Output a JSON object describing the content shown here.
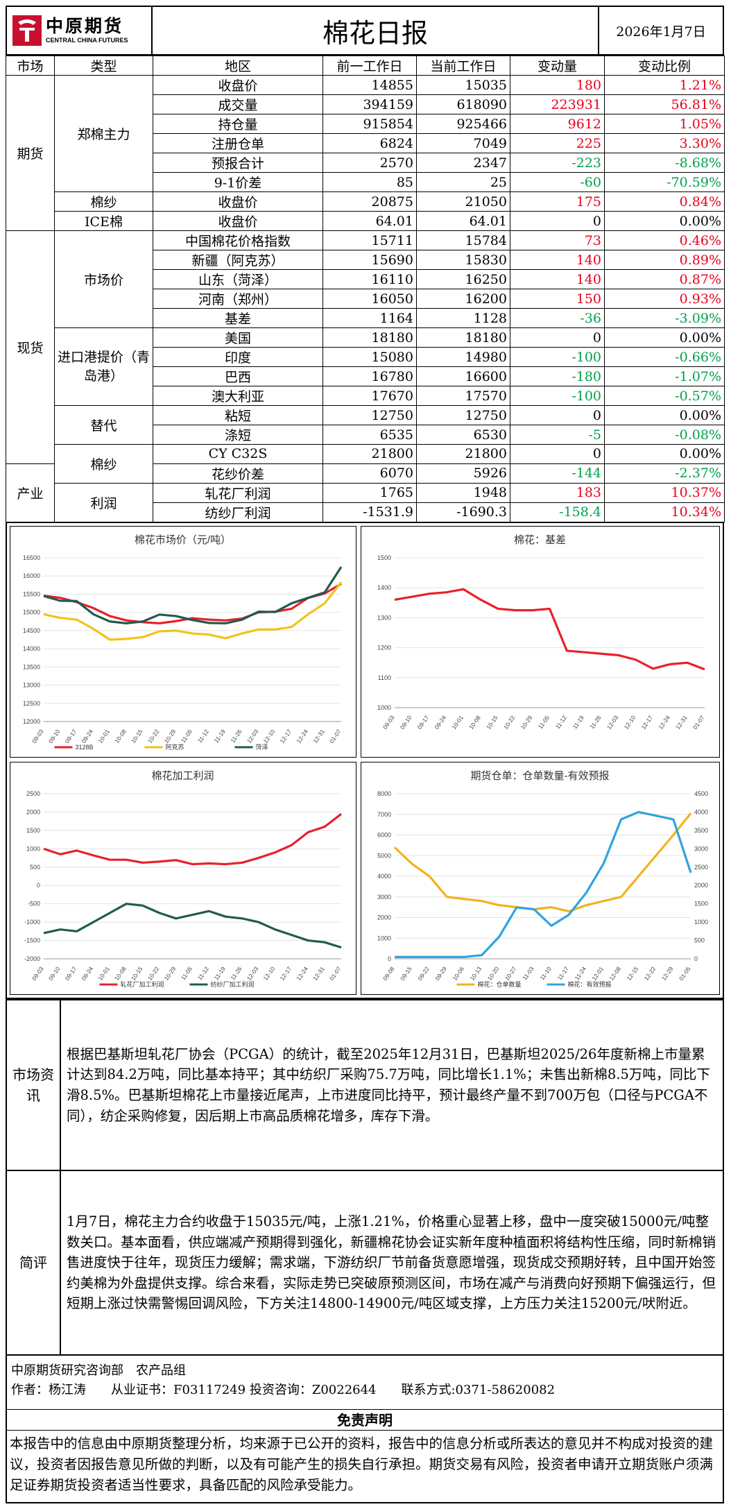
{
  "header": {
    "logo_cn": "中原期货",
    "logo_en": "CENTRAL CHINA FUTURES",
    "title": "棉花日报",
    "date": "2026年1月7日"
  },
  "table_headers": [
    "市场",
    "类型",
    "地区",
    "前一工作日",
    "当前工作日",
    "变动量",
    "变动比例"
  ],
  "rows": [
    {
      "market": "期货",
      "type": "郑棉主力",
      "area": "收盘价",
      "prev": "14855",
      "cur": "15035",
      "chg": "180",
      "pct": "1.21%",
      "dir": "up"
    },
    {
      "area": "成交量",
      "prev": "394159",
      "cur": "618090",
      "chg": "223931",
      "pct": "56.81%",
      "dir": "up"
    },
    {
      "area": "持仓量",
      "prev": "915854",
      "cur": "925466",
      "chg": "9612",
      "pct": "1.05%",
      "dir": "up"
    },
    {
      "area": "注册仓单",
      "prev": "6824",
      "cur": "7049",
      "chg": "225",
      "pct": "3.30%",
      "dir": "up"
    },
    {
      "area": "预报合计",
      "prev": "2570",
      "cur": "2347",
      "chg": "-223",
      "pct": "-8.68%",
      "dir": "down"
    },
    {
      "area": "9-1价差",
      "prev": "85",
      "cur": "25",
      "chg": "-60",
      "pct": "-70.59%",
      "dir": "down"
    },
    {
      "type": "棉纱",
      "area": "收盘价",
      "prev": "20875",
      "cur": "21050",
      "chg": "175",
      "pct": "0.84%",
      "dir": "up"
    },
    {
      "type": "ICE棉",
      "area": "收盘价",
      "prev": "64.01",
      "cur": "64.01",
      "chg": "0",
      "pct": "0.00%",
      "dir": "flat"
    },
    {
      "market": "现货",
      "type": "市场价",
      "area": "中国棉花价格指数",
      "prev": "15711",
      "cur": "15784",
      "chg": "73",
      "pct": "0.46%",
      "dir": "up"
    },
    {
      "area": "新疆（阿克苏）",
      "prev": "15690",
      "cur": "15830",
      "chg": "140",
      "pct": "0.89%",
      "dir": "up"
    },
    {
      "area": "山东（菏泽）",
      "prev": "16110",
      "cur": "16250",
      "chg": "140",
      "pct": "0.87%",
      "dir": "up"
    },
    {
      "area": "河南（郑州）",
      "prev": "16050",
      "cur": "16200",
      "chg": "150",
      "pct": "0.93%",
      "dir": "up"
    },
    {
      "area": "基差",
      "prev": "1164",
      "cur": "1128",
      "chg": "-36",
      "pct": "-3.09%",
      "dir": "down"
    },
    {
      "type": "进口港提价（青岛港）",
      "area": "美国",
      "prev": "18180",
      "cur": "18180",
      "chg": "0",
      "pct": "0.00%",
      "dir": "flat"
    },
    {
      "area": "印度",
      "prev": "15080",
      "cur": "14980",
      "chg": "-100",
      "pct": "-0.66%",
      "dir": "down"
    },
    {
      "area": "巴西",
      "prev": "16780",
      "cur": "16600",
      "chg": "-180",
      "pct": "-1.07%",
      "dir": "down"
    },
    {
      "area": "澳大利亚",
      "prev": "17670",
      "cur": "17570",
      "chg": "-100",
      "pct": "-0.57%",
      "dir": "down"
    },
    {
      "type": "替代",
      "area": "粘短",
      "prev": "12750",
      "cur": "12750",
      "chg": "0",
      "pct": "0.00%",
      "dir": "flat"
    },
    {
      "area": "涤短",
      "prev": "6535",
      "cur": "6530",
      "chg": "-5",
      "pct": "-0.08%",
      "dir": "down"
    },
    {
      "type": "棉纱",
      "area": "CY C32S",
      "prev": "21800",
      "cur": "21800",
      "chg": "0",
      "pct": "0.00%",
      "dir": "flat"
    },
    {
      "market": "产业",
      "area": "花纱价差",
      "prev": "6070",
      "cur": "5926",
      "chg": "-144",
      "pct": "-2.37%",
      "dir": "down"
    },
    {
      "type": "利润",
      "area": "轧花厂利润",
      "prev": "1765",
      "cur": "1948",
      "chg": "183",
      "pct": "10.37%",
      "dir": "up"
    },
    {
      "area": "纺纱厂利润",
      "prev": "-1531.9",
      "cur": "-1690.3",
      "chg": "-158.4",
      "pct": "10.34%",
      "dir": "down",
      "pct_dir": "up"
    }
  ],
  "chart_data": [
    {
      "type": "line",
      "title": "棉花市场价（元/吨）",
      "ylim": [
        12000,
        16500
      ],
      "yticks": [
        12000,
        12500,
        13000,
        13500,
        14000,
        14500,
        15000,
        15500,
        16000,
        16500
      ],
      "x": [
        "09-03",
        "09-10",
        "09-17",
        "09-24",
        "10-01",
        "10-08",
        "10-15",
        "10-22",
        "10-29",
        "11-05",
        "11-12",
        "11-19",
        "11-26",
        "12-03",
        "12-10",
        "12-17",
        "12-24",
        "12-31",
        "01-07"
      ],
      "series": [
        {
          "name": "3128B",
          "color": "#e8202a",
          "values": [
            15460,
            15400,
            15280,
            15120,
            14900,
            14780,
            14730,
            14700,
            14760,
            14840,
            14800,
            14780,
            14830,
            15000,
            15020,
            15100,
            15400,
            15520,
            15784
          ]
        },
        {
          "name": "阿克苏",
          "color": "#f2c218",
          "values": [
            14950,
            14850,
            14800,
            14550,
            14250,
            14270,
            14320,
            14480,
            14500,
            14420,
            14390,
            14290,
            14420,
            14530,
            14530,
            14600,
            14950,
            15250,
            15830
          ]
        },
        {
          "name": "菏泽",
          "color": "#1f5c4f",
          "values": [
            15450,
            15320,
            15310,
            14950,
            14750,
            14700,
            14750,
            14940,
            14900,
            14790,
            14710,
            14700,
            14800,
            15020,
            15010,
            15250,
            15400,
            15550,
            16250
          ]
        }
      ]
    },
    {
      "type": "line",
      "title": "棉花：基差",
      "ylim": [
        1000,
        1500
      ],
      "yticks": [
        1000,
        1100,
        1200,
        1300,
        1400,
        1500
      ],
      "x": [
        "09-03",
        "09-10",
        "09-17",
        "09-24",
        "10-01",
        "10-08",
        "10-15",
        "10-22",
        "10-29",
        "11-05",
        "11-12",
        "11-19",
        "11-26",
        "12-03",
        "12-10",
        "12-17",
        "12-24",
        "12-31",
        "01-07"
      ],
      "series": [
        {
          "name": "基差",
          "color": "#e8202a",
          "values": [
            1360,
            1370,
            1380,
            1385,
            1395,
            1360,
            1330,
            1325,
            1325,
            1330,
            1190,
            1185,
            1180,
            1175,
            1160,
            1130,
            1145,
            1150,
            1128
          ]
        }
      ]
    },
    {
      "type": "line",
      "title": "棉花加工利润",
      "ylim": [
        -2000,
        2500
      ],
      "yticks": [
        -2000,
        -1500,
        -1000,
        -500,
        0,
        500,
        1000,
        1500,
        2000,
        2500
      ],
      "x": [
        "09-03",
        "09-10",
        "09-17",
        "09-24",
        "10-01",
        "10-08",
        "10-15",
        "10-22",
        "10-29",
        "11-05",
        "11-12",
        "11-19",
        "11-26",
        "12-03",
        "12-10",
        "12-17",
        "12-24",
        "12-31",
        "01-07"
      ],
      "series": [
        {
          "name": "轧花厂加工利润",
          "color": "#e8202a",
          "values": [
            1000,
            850,
            950,
            820,
            700,
            700,
            620,
            650,
            690,
            580,
            600,
            580,
            620,
            750,
            900,
            1100,
            1450,
            1600,
            1948
          ]
        },
        {
          "name": "纺纱厂加工利润",
          "color": "#1f5c4f",
          "values": [
            -1300,
            -1200,
            -1250,
            -1000,
            -750,
            -500,
            -550,
            -750,
            -900,
            -800,
            -700,
            -850,
            -900,
            -1000,
            -1200,
            -1350,
            -1500,
            -1550,
            -1690
          ]
        }
      ]
    },
    {
      "type": "line",
      "title": "期货仓单：仓单数量-有效预报",
      "ylim": [
        0,
        8000
      ],
      "y2lim": [
        0,
        4500
      ],
      "yticks": [
        0,
        1000,
        2000,
        3000,
        4000,
        5000,
        6000,
        7000,
        8000
      ],
      "y2ticks": [
        0,
        500,
        1000,
        1500,
        2000,
        2500,
        3000,
        3500,
        4000,
        4500
      ],
      "x": [
        "09-08",
        "09-15",
        "09-22",
        "09-29",
        "10-06",
        "10-13",
        "10-20",
        "10-27",
        "11-03",
        "11-10",
        "11-17",
        "11-24",
        "12-01",
        "12-08",
        "12-15",
        "12-22",
        "12-29",
        "01-05"
      ],
      "series": [
        {
          "name": "棉花：仓单数量",
          "color": "#f2b21a",
          "values": [
            5400,
            4600,
            4000,
            3000,
            2900,
            2800,
            2600,
            2500,
            2400,
            2500,
            2300,
            2600,
            2800,
            3000,
            4000,
            5000,
            6000,
            7049
          ]
        },
        {
          "name": "棉花：有效预报",
          "color": "#2fa3e0",
          "values": [
            50,
            50,
            50,
            50,
            50,
            100,
            600,
            1400,
            1350,
            900,
            1200,
            1800,
            2600,
            3800,
            4000,
            3900,
            3800,
            2347
          ]
        }
      ]
    }
  ],
  "news": {
    "label": "市场资讯",
    "text": "根据巴基斯坦轧花厂协会（PCGA）的统计，截至2025年12月31日，巴基斯坦2025/26年度新棉上市量累计达到84.2万吨，同比基本持平；其中纺织厂采购75.7万吨，同比增长1.1%；未售出新棉8.5万吨，同比下滑8.5%。巴基斯坦棉花上市量接近尾声，上市进度同比持平，预计最终产量不到700万包（口径与PCGA不同），纺企采购修复，因后期上市高品质棉花增多，库存下滑。"
  },
  "comment": {
    "label": "简评",
    "text": "1月7日，棉花主力合约收盘于15035元/吨，上涨1.21%，价格重心显著上移，盘中一度突破15000元/吨整数关口。基本面看，供应端减产预期得到强化，新疆棉花协会证实新年度种植面积将结构性压缩，同时新棉销售进度快于往年，现货压力缓解；需求端，下游纺织厂节前备货意愿增强，现货成交预期好转，且中国开始签约美棉为外盘提供支撑。综合来看，实际走势已突破原预测区间，市场在减产与消费向好预期下偏强运行，但短期上涨过快需警惕回调风险，下方关注14800-14900元/吨区域支撑，上方压力关注15200元/吠附近。"
  },
  "footer": {
    "dept": "中原期货研究咨询部　农产品组",
    "author": "作者：杨江涛　　从业证书：F03117249 投资咨询：Z0022644　　联系方式:0371-58620082",
    "disclaimer_title": "免责声明",
    "disclaimer": "本报告中的信息由中原期货整理分析，均来源于已公开的资料，报告中的信息分析或所表达的意见并不构成对投资的建议，投资者因报告意见所做的判断，以及有可能产生的损失自行承担。期货交易有风险，投资者申请开立期货账户须满足证券期货投资者适当性要求，具备匹配的风险承受能力。"
  }
}
